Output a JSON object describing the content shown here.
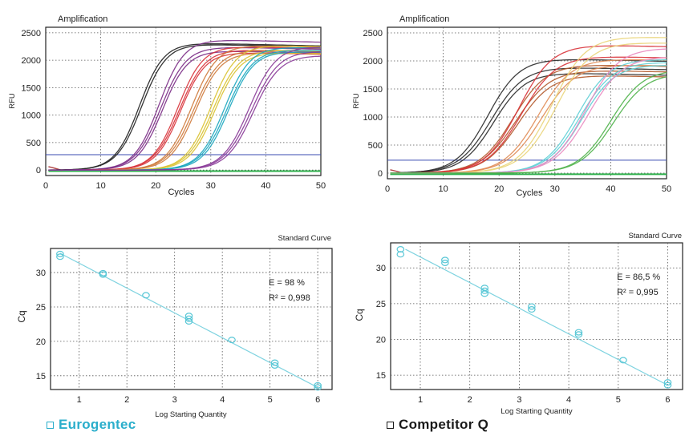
{
  "legend": [
    {
      "label": "Eurogentec",
      "color": "#2aaecb"
    },
    {
      "label": "Competitor Q",
      "color": "#1a1a1a"
    }
  ],
  "chart_data": [
    {
      "id": "amp-left",
      "type": "line",
      "title": "Amplification",
      "xlabel": "Cycles",
      "ylabel": "RFU",
      "xlim": [
        0,
        50
      ],
      "ylim": [
        -100,
        2600
      ],
      "xticks": [
        0,
        10,
        20,
        30,
        40,
        50
      ],
      "yticks": [
        0,
        500,
        1000,
        1500,
        2000,
        2500
      ],
      "threshold": 280,
      "baseline_color": "#2db04b",
      "series": [
        {
          "name": "black",
          "color": "#1f1f1f",
          "curves": [
            [
              17.0,
              2320,
              0.45
            ],
            [
              17.4,
              2300,
              0.44
            ]
          ]
        },
        {
          "name": "purple",
          "color": "#7b2c86",
          "curves": [
            [
              20.6,
              2380,
              0.44
            ],
            [
              20.9,
              2250,
              0.43
            ],
            [
              21.2,
              2180,
              0.44
            ]
          ]
        },
        {
          "name": "red",
          "color": "#d8333a",
          "curves": [
            [
              24.0,
              2260,
              0.44
            ],
            [
              24.3,
              2200,
              0.43
            ],
            [
              24.5,
              2150,
              0.44
            ]
          ]
        },
        {
          "name": "orange",
          "color": "#cf7a3b",
          "curves": [
            [
              26.5,
              2280,
              0.43
            ],
            [
              26.9,
              2200,
              0.42
            ],
            [
              27.2,
              2150,
              0.43
            ]
          ]
        },
        {
          "name": "yellow",
          "color": "#d9c230",
          "curves": [
            [
              30.0,
              2280,
              0.43
            ],
            [
              30.4,
              2200,
              0.42
            ],
            [
              30.7,
              2150,
              0.43
            ]
          ]
        },
        {
          "name": "cyan",
          "color": "#1aa6bf",
          "curves": [
            [
              32.5,
              2250,
              0.43
            ],
            [
              32.9,
              2200,
              0.42
            ],
            [
              33.2,
              2170,
              0.43
            ]
          ]
        },
        {
          "name": "violet",
          "color": "#8a3a98",
          "curves": [
            [
              37.0,
              2260,
              0.41
            ],
            [
              37.4,
              2180,
              0.4
            ],
            [
              37.7,
              2100,
              0.41
            ]
          ]
        }
      ]
    },
    {
      "id": "amp-right",
      "type": "line",
      "title": "Amplification",
      "xlabel": "Cycles",
      "ylabel": "RFU",
      "xlim": [
        0,
        50
      ],
      "ylim": [
        -100,
        2600
      ],
      "xticks": [
        0,
        10,
        20,
        30,
        40,
        50
      ],
      "yticks": [
        0,
        500,
        1000,
        1500,
        2000,
        2500
      ],
      "threshold": 230,
      "baseline_color": "#2db04b",
      "series": [
        {
          "name": "black",
          "color": "#2a2a2a",
          "curves": [
            [
              18.0,
              2050,
              0.35
            ],
            [
              18.6,
              1900,
              0.34
            ],
            [
              19.0,
              1800,
              0.35
            ]
          ]
        },
        {
          "name": "brown",
          "color": "#b2592b",
          "curves": [
            [
              22.5,
              1950,
              0.33
            ],
            [
              23.0,
              1850,
              0.32
            ],
            [
              23.4,
              1760,
              0.33
            ]
          ]
        },
        {
          "name": "red",
          "color": "#d8333a",
          "curves": [
            [
              23.5,
              2300,
              0.33
            ],
            [
              24.0,
              2100,
              0.32
            ]
          ]
        },
        {
          "name": "orange",
          "color": "#e08c55",
          "curves": [
            [
              27.0,
              2050,
              0.33
            ],
            [
              27.6,
              1950,
              0.32
            ]
          ]
        },
        {
          "name": "yellow",
          "color": "#ead57a",
          "curves": [
            [
              29.5,
              2450,
              0.33
            ],
            [
              30.2,
              2350,
              0.32
            ]
          ]
        },
        {
          "name": "cyan",
          "color": "#5fcfd6",
          "curves": [
            [
              34.0,
              2050,
              0.34
            ],
            [
              34.5,
              2000,
              0.33
            ],
            [
              34.9,
              1950,
              0.34
            ]
          ]
        },
        {
          "name": "pink",
          "color": "#ea8ac0",
          "curves": [
            [
              35.5,
              2250,
              0.33
            ],
            [
              36.0,
              2100,
              0.32
            ]
          ]
        },
        {
          "name": "green",
          "color": "#4fb34a",
          "curves": [
            [
              40.0,
              1860,
              0.34
            ],
            [
              40.5,
              1800,
              0.33
            ]
          ]
        }
      ]
    },
    {
      "id": "std-left",
      "type": "scatter",
      "title": "Standard Curve",
      "xlabel": "Log Starting Quantity",
      "ylabel": "Cq",
      "xlim": [
        0.4,
        6.3
      ],
      "ylim": [
        13,
        33.5
      ],
      "xticks": [
        1,
        2,
        3,
        4,
        5,
        6
      ],
      "yticks": [
        15,
        20,
        25,
        30
      ],
      "fit": {
        "x0": 0.6,
        "y0": 32.8,
        "x1": 6.0,
        "y1": 13.3
      },
      "points": [
        {
          "x": 0.6,
          "y": 32.7
        },
        {
          "x": 0.6,
          "y": 32.3
        },
        {
          "x": 1.5,
          "y": 29.9
        },
        {
          "x": 1.5,
          "y": 29.7
        },
        {
          "x": 2.4,
          "y": 26.7
        },
        {
          "x": 3.3,
          "y": 23.7
        },
        {
          "x": 3.3,
          "y": 23.3
        },
        {
          "x": 3.3,
          "y": 22.9
        },
        {
          "x": 4.2,
          "y": 20.2
        },
        {
          "x": 5.1,
          "y": 16.9
        },
        {
          "x": 5.1,
          "y": 16.5
        },
        {
          "x": 6.0,
          "y": 13.6
        },
        {
          "x": 6.0,
          "y": 13.3
        }
      ],
      "annotations": [
        "E = 98 %",
        "R² = 0,998"
      ]
    },
    {
      "id": "std-right",
      "type": "scatter",
      "title": "Standard Curve",
      "xlabel": "Log Starting Quantity",
      "ylabel": "Cq",
      "xlim": [
        0.4,
        6.3
      ],
      "ylim": [
        13,
        33.5
      ],
      "xticks": [
        1,
        2,
        3,
        4,
        5,
        6
      ],
      "yticks": [
        15,
        20,
        25,
        30
      ],
      "fit": {
        "x0": 0.7,
        "y0": 32.6,
        "x1": 6.0,
        "y1": 13.6
      },
      "points": [
        {
          "x": 0.6,
          "y": 32.6
        },
        {
          "x": 0.6,
          "y": 31.9
        },
        {
          "x": 1.5,
          "y": 31.1
        },
        {
          "x": 1.5,
          "y": 30.7
        },
        {
          "x": 2.3,
          "y": 27.2
        },
        {
          "x": 2.3,
          "y": 26.8
        },
        {
          "x": 2.3,
          "y": 26.4
        },
        {
          "x": 3.25,
          "y": 24.6
        },
        {
          "x": 3.25,
          "y": 24.2
        },
        {
          "x": 4.2,
          "y": 21.0
        },
        {
          "x": 4.2,
          "y": 20.7
        },
        {
          "x": 5.1,
          "y": 17.1
        },
        {
          "x": 6.0,
          "y": 14.0
        },
        {
          "x": 6.0,
          "y": 13.6
        }
      ],
      "annotations": [
        "E = 86,5 %",
        "R² = 0,995"
      ]
    }
  ]
}
